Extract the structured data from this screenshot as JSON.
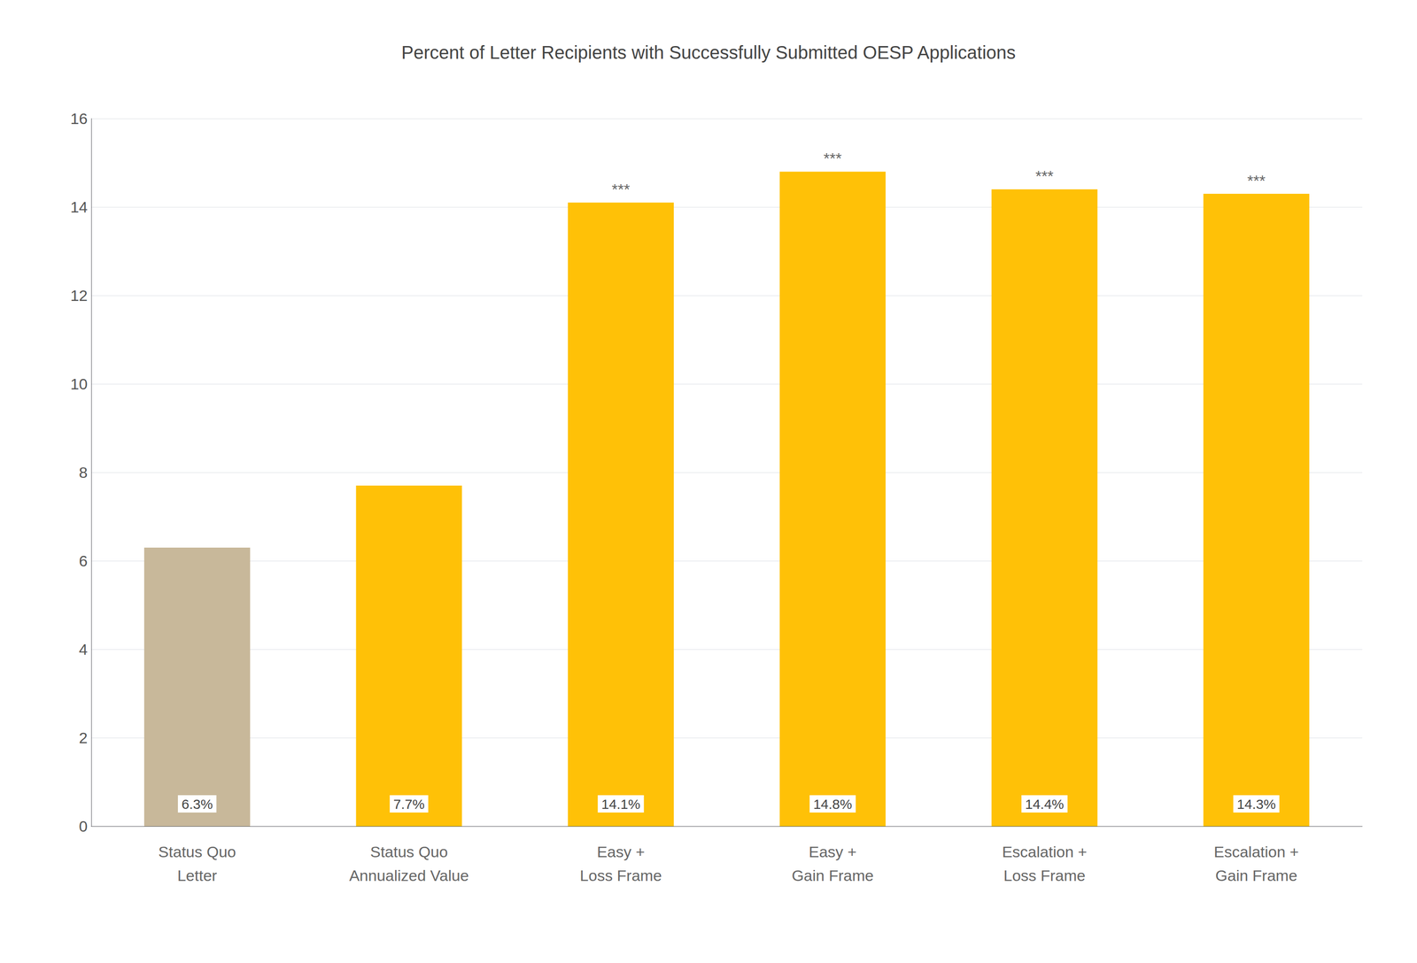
{
  "chart_data": {
    "type": "bar",
    "title": "Percent of Letter Recipients with Successfully Submitted OESP Applications",
    "categories": [
      "Status Quo\nLetter",
      "Status Quo\nAnnualized Value",
      "Easy +\nLoss Frame",
      "Easy +\nGain Frame",
      "Escalation +\nLoss Frame",
      "Escalation +\nGain Frame"
    ],
    "values": [
      6.3,
      7.7,
      14.1,
      14.8,
      14.4,
      14.3
    ],
    "value_labels": [
      "6.3%",
      "7.7%",
      "14.1%",
      "14.8%",
      "14.4%",
      "14.3%"
    ],
    "colors": [
      "#C8B89A",
      "#FFC107",
      "#FFC107",
      "#FFC107",
      "#FFC107",
      "#FFC107"
    ],
    "annotations": [
      {
        "category": "Easy +\nLoss Frame",
        "text": "***"
      },
      {
        "category": "Easy +\nGain Frame",
        "text": "***"
      },
      {
        "category": "Escalation +\nLoss Frame",
        "text": "***"
      },
      {
        "category": "Escalation +\nGain Frame",
        "text": "***"
      }
    ],
    "ylim": [
      0,
      16
    ],
    "yticks": [
      0,
      2,
      4,
      6,
      8,
      10,
      12,
      14,
      16
    ],
    "data_labels": true,
    "grid": true
  }
}
